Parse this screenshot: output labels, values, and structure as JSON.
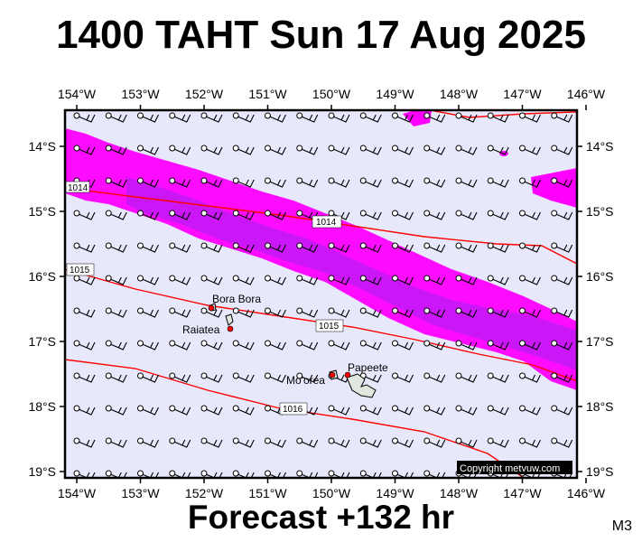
{
  "title": "1400 TAHT Sun 17 Aug 2025",
  "forecast_label": "Forecast +132 hr",
  "model_label": "M3",
  "copyright": "Copyright metvuw.com",
  "map": {
    "lon_labels": [
      "154°W",
      "153°W",
      "152°W",
      "151°W",
      "150°W",
      "149°W",
      "148°W",
      "147°W",
      "146°W"
    ],
    "lat_labels": [
      "14°S",
      "15°S",
      "16°S",
      "17°S",
      "18°S",
      "19°S"
    ],
    "lon_values": [
      -154,
      -153,
      -152,
      -151,
      -150,
      -149,
      -148,
      -147,
      -146
    ],
    "lat_values": [
      -14,
      -15,
      -16,
      -17,
      -18,
      -19
    ],
    "places": [
      {
        "name": "Bora Bora",
        "lon": -151.75,
        "lat": -16.5
      },
      {
        "name": "Raiatea",
        "lon": -151.45,
        "lat": -16.8
      },
      {
        "name": "Mo'orea",
        "lon": -149.85,
        "lat": -17.53
      },
      {
        "name": "Papeete",
        "lon": -149.57,
        "lat": -17.54
      }
    ],
    "isobars": [
      {
        "label": "1014",
        "value": 1014
      },
      {
        "label": "1015",
        "value": 1015
      },
      {
        "label": "1016",
        "value": 1016
      }
    ],
    "colors": {
      "background": "#e8e8fc",
      "rain_light": "#ff00ff",
      "rain_heavy": "#a020f0",
      "isobar": "#ff0000"
    }
  }
}
